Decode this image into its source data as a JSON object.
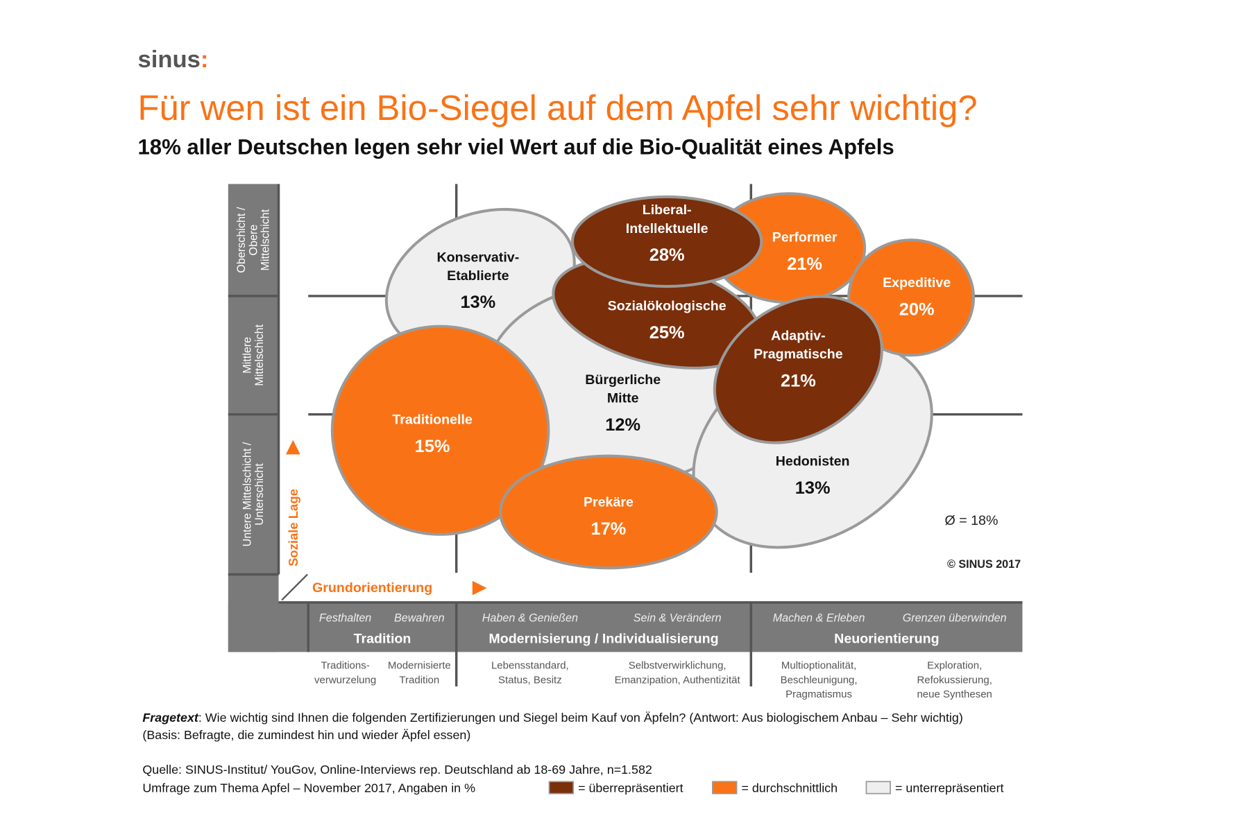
{
  "logo": {
    "text": "sinus",
    "mark": ":"
  },
  "title": "Für wen ist ein Bio-Siegel auf dem Apfel sehr wichtig?",
  "subtitle": "18% aller Deutschen legen sehr viel Wert auf die Bio-Qualität eines Apfels",
  "colors": {
    "accent": "#f97316",
    "over": "#7a2e0a",
    "average": "#f97316",
    "under": "#efefef",
    "axis": "#7a7a7a"
  },
  "chart_data": {
    "type": "segment-map",
    "average": "Ø = 18%",
    "copyright": "© SINUS 2017",
    "y_axis_label": "Soziale Lage",
    "x_axis_label": "Grundorientierung",
    "rows": [
      "Oberschicht / Obere Mittelschicht",
      "Mittlere Mittelschicht",
      "Untere Mittelschicht / Unterschicht"
    ],
    "row_lines": [
      [
        "Oberschicht /",
        "Obere",
        "Mittelschicht"
      ],
      [
        "Mittlere",
        "Mittelschicht"
      ],
      [
        "Untere Mittelschicht /",
        "Unterschicht"
      ]
    ],
    "columns": [
      {
        "title": "Tradition",
        "sub": [
          "Festhalten",
          "Bewahren"
        ],
        "desc": [
          [
            "Traditions-",
            "verwurzelung"
          ],
          [
            "Modernisierte",
            "Tradition"
          ]
        ]
      },
      {
        "title": "Modernisierung / Individualisierung",
        "sub": [
          "Haben & Genießen",
          "Sein & Verändern"
        ],
        "desc": [
          [
            "Lebensstandard,",
            "Status, Besitz"
          ],
          [
            "Selbstverwirklichung,",
            "Emanzipation, Authentizität"
          ]
        ]
      },
      {
        "title": "Neuorientierung",
        "sub": [
          "Machen & Erleben",
          "Grenzen überwinden"
        ],
        "desc": [
          [
            "Multioptionalität,",
            "Beschleunigung,",
            "Pragmatismus"
          ],
          [
            "Exploration,",
            "Refokussierung,",
            "neue Synthesen"
          ]
        ]
      }
    ],
    "segments": [
      {
        "name": [
          "Konservativ-",
          "Etablierte"
        ],
        "value": "13%",
        "level": "under"
      },
      {
        "name": [
          "Bürgerliche",
          "Mitte"
        ],
        "value": "12%",
        "level": "under"
      },
      {
        "name": [
          "Hedonisten"
        ],
        "value": "13%",
        "level": "under"
      },
      {
        "name": [
          "Traditionelle"
        ],
        "value": "15%",
        "level": "average"
      },
      {
        "name": [
          "Prekäre"
        ],
        "value": "17%",
        "level": "average"
      },
      {
        "name": [
          "Performer"
        ],
        "value": "21%",
        "level": "average"
      },
      {
        "name": [
          "Expeditive"
        ],
        "value": "20%",
        "level": "average"
      },
      {
        "name": [
          "Sozialökologische"
        ],
        "value": "25%",
        "level": "over"
      },
      {
        "name": [
          "Liberal-",
          "Intellektuelle"
        ],
        "value": "28%",
        "level": "over"
      },
      {
        "name": [
          "Adaptiv-",
          "Pragmatische"
        ],
        "value": "21%",
        "level": "over"
      }
    ],
    "legend": [
      {
        "level": "over",
        "label": "= überrepräsentiert"
      },
      {
        "level": "average",
        "label": "= durchschnittlich"
      },
      {
        "level": "under",
        "label": "= unterrepräsentiert"
      }
    ]
  },
  "footer": {
    "question_label": "Fragetext",
    "question": ": Wie wichtig sind Ihnen die folgenden Zertifizierungen und Siegel beim Kauf von Äpfeln? (Antwort: Aus biologischem Anbau – Sehr wichtig)",
    "basis": "(Basis: Befragte, die zumindest hin und wieder Äpfel essen)",
    "source": "Quelle: SINUS-Institut/ YouGov, Online-Interviews rep. Deutschland ab 18-69 Jahre, n=1.582",
    "survey": "Umfrage zum Thema Apfel – November 2017, Angaben in %"
  }
}
